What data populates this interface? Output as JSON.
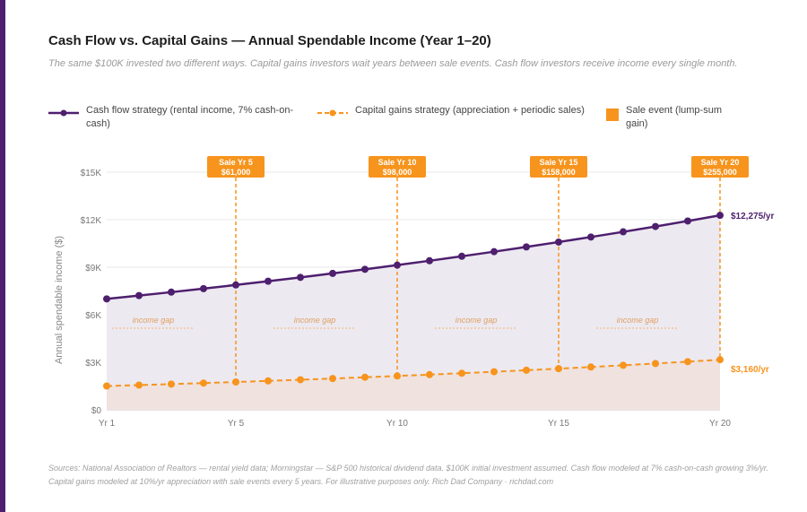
{
  "title": "Cash Flow vs. Capital Gains — Annual Spendable Income (Year 1–20)",
  "subtitle": "The same $100K invested two different ways. Capital gains investors wait years between sale events. Cash flow investors receive income every single month.",
  "legend": {
    "cash_flow": "Cash flow strategy (rental income, 7% cash-on-cash)",
    "capital_gains": "Capital gains strategy (appreciation + periodic sales)",
    "sale_event": "Sale event (lump-sum gain)"
  },
  "sources": "Sources: National Association of Realtors — rental yield data; Morningstar — S&P 500 historical dividend data. $100K initial investment assumed. Cash flow modeled at 7% cash-on-cash growing 3%/yr. Capital gains modeled at 10%/yr appreciation with sale events every 5 years. For illustrative purposes only. Rich Dad Company · richdad.com",
  "colors": {
    "cash_flow": "#4e1f6e",
    "capital_gains": "#f7941d",
    "cash_fill": "#ece9f1",
    "cg_fill": "#efe2df"
  },
  "chart_data": {
    "type": "line",
    "ylabel": "Annual spendable income ($)",
    "ylim": [
      0,
      15000
    ],
    "yticks": [
      {
        "v": 0,
        "label": "$0"
      },
      {
        "v": 3000,
        "label": "$3K"
      },
      {
        "v": 6000,
        "label": "$6K"
      },
      {
        "v": 9000,
        "label": "$9K"
      },
      {
        "v": 12000,
        "label": "$12K"
      },
      {
        "v": 15000,
        "label": "$15K"
      }
    ],
    "xticks": [
      {
        "v": 1,
        "label": "Yr 1"
      },
      {
        "v": 5,
        "label": "Yr 5"
      },
      {
        "v": 10,
        "label": "Yr 10"
      },
      {
        "v": 15,
        "label": "Yr 15"
      },
      {
        "v": 20,
        "label": "Yr 20"
      }
    ],
    "x": [
      1,
      2,
      3,
      4,
      5,
      6,
      7,
      8,
      9,
      10,
      11,
      12,
      13,
      14,
      15,
      16,
      17,
      18,
      19,
      20
    ],
    "series": [
      {
        "name": "Cash flow strategy (rental income, 7% cash-on-cash)",
        "values": [
          7000,
          7210,
          7426,
          7649,
          7879,
          8115,
          8358,
          8609,
          8867,
          9133,
          9407,
          9690,
          9980,
          10280,
          10588,
          10906,
          11233,
          11570,
          11917,
          12275
        ],
        "end_label": "$12,275/yr"
      },
      {
        "name": "Capital gains strategy (appreciation + periodic sales)",
        "values": [
          1500,
          1560,
          1622,
          1687,
          1755,
          1825,
          1898,
          1974,
          2053,
          2135,
          2220,
          2309,
          2401,
          2497,
          2597,
          2701,
          2809,
          2921,
          3038,
          3160
        ],
        "end_label": "$3,160/yr"
      }
    ],
    "sale_events": [
      {
        "year": 5,
        "label": "Sale Yr 5",
        "amount": "$61,000"
      },
      {
        "year": 10,
        "label": "Sale Yr 10",
        "amount": "$98,000"
      },
      {
        "year": 15,
        "label": "Sale Yr 15",
        "amount": "$158,000"
      },
      {
        "year": 20,
        "label": "Sale Yr 20",
        "amount": "$255,000"
      }
    ],
    "annotations": [
      {
        "from": 2,
        "to": 4,
        "label": "income gap"
      },
      {
        "from": 7,
        "to": 9,
        "label": "income gap"
      },
      {
        "from": 12,
        "to": 14,
        "label": "income gap"
      },
      {
        "from": 17,
        "to": 19,
        "label": "income gap"
      }
    ],
    "grid": true,
    "legend_position": "top-left"
  }
}
